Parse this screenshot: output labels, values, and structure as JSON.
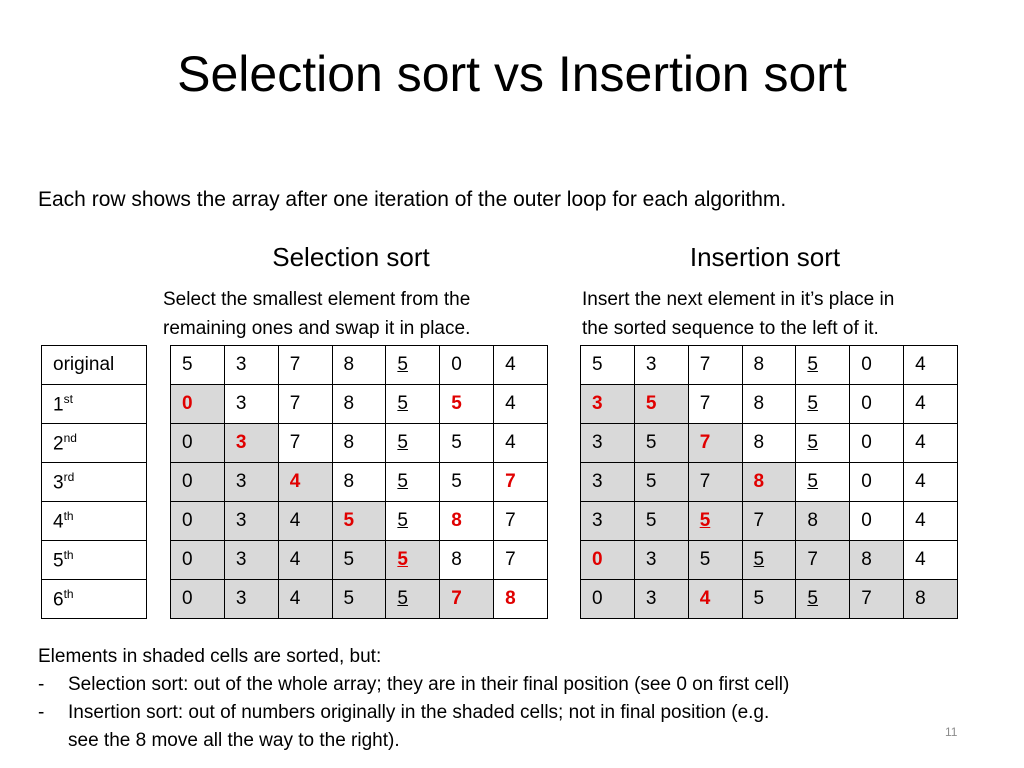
{
  "title": "Selection sort vs Insertion sort",
  "subtitle": "Each row shows the array after one iteration of the outer loop for each algorithm.",
  "selection": {
    "heading": "Selection sort",
    "desc_line1": "Select the smallest element from the",
    "desc_line2": "remaining ones and swap it in place."
  },
  "insertion": {
    "heading": "Insertion sort",
    "desc_line1": "Insert the next element in it’s place in",
    "desc_line2": "the sorted sequence to the left of it."
  },
  "row_labels": [
    {
      "base": "original",
      "sup": ""
    },
    {
      "base": "1",
      "sup": "st"
    },
    {
      "base": "2",
      "sup": "nd"
    },
    {
      "base": "3",
      "sup": "rd"
    },
    {
      "base": "4",
      "sup": "th"
    },
    {
      "base": "5",
      "sup": "th"
    },
    {
      "base": "6",
      "sup": "th"
    }
  ],
  "selection_rows": [
    [
      {
        "v": "5"
      },
      {
        "v": "3"
      },
      {
        "v": "7"
      },
      {
        "v": "8"
      },
      {
        "v": "5",
        "u": true
      },
      {
        "v": "0"
      },
      {
        "v": "4"
      }
    ],
    [
      {
        "v": "0",
        "s": true,
        "r": true
      },
      {
        "v": "3"
      },
      {
        "v": "7"
      },
      {
        "v": "8"
      },
      {
        "v": "5",
        "u": true
      },
      {
        "v": "5",
        "r": true
      },
      {
        "v": "4"
      }
    ],
    [
      {
        "v": "0",
        "s": true
      },
      {
        "v": "3",
        "s": true,
        "r": true
      },
      {
        "v": "7"
      },
      {
        "v": "8"
      },
      {
        "v": "5",
        "u": true
      },
      {
        "v": "5"
      },
      {
        "v": "4"
      }
    ],
    [
      {
        "v": "0",
        "s": true
      },
      {
        "v": "3",
        "s": true
      },
      {
        "v": "4",
        "s": true,
        "r": true
      },
      {
        "v": "8"
      },
      {
        "v": "5",
        "u": true
      },
      {
        "v": "5"
      },
      {
        "v": "7",
        "r": true
      }
    ],
    [
      {
        "v": "0",
        "s": true
      },
      {
        "v": "3",
        "s": true
      },
      {
        "v": "4",
        "s": true
      },
      {
        "v": "5",
        "s": true,
        "r": true
      },
      {
        "v": "5",
        "u": true
      },
      {
        "v": "8",
        "r": true
      },
      {
        "v": "7"
      }
    ],
    [
      {
        "v": "0",
        "s": true
      },
      {
        "v": "3",
        "s": true
      },
      {
        "v": "4",
        "s": true
      },
      {
        "v": "5",
        "s": true
      },
      {
        "v": "5",
        "s": true,
        "r": true,
        "u": true
      },
      {
        "v": "8"
      },
      {
        "v": "7"
      }
    ],
    [
      {
        "v": "0",
        "s": true
      },
      {
        "v": "3",
        "s": true
      },
      {
        "v": "4",
        "s": true
      },
      {
        "v": "5",
        "s": true
      },
      {
        "v": "5",
        "s": true,
        "u": true
      },
      {
        "v": "7",
        "s": true,
        "r": true
      },
      {
        "v": "8",
        "r": true
      }
    ]
  ],
  "insertion_rows": [
    [
      {
        "v": "5"
      },
      {
        "v": "3"
      },
      {
        "v": "7"
      },
      {
        "v": "8"
      },
      {
        "v": "5",
        "u": true
      },
      {
        "v": "0"
      },
      {
        "v": "4"
      }
    ],
    [
      {
        "v": "3",
        "s": true,
        "r": true
      },
      {
        "v": "5",
        "s": true,
        "r": true
      },
      {
        "v": "7"
      },
      {
        "v": "8"
      },
      {
        "v": "5",
        "u": true
      },
      {
        "v": "0"
      },
      {
        "v": "4"
      }
    ],
    [
      {
        "v": "3",
        "s": true
      },
      {
        "v": "5",
        "s": true
      },
      {
        "v": "7",
        "s": true,
        "r": true
      },
      {
        "v": "8"
      },
      {
        "v": "5",
        "u": true
      },
      {
        "v": "0"
      },
      {
        "v": "4"
      }
    ],
    [
      {
        "v": "3",
        "s": true
      },
      {
        "v": "5",
        "s": true
      },
      {
        "v": "7",
        "s": true
      },
      {
        "v": "8",
        "s": true,
        "r": true
      },
      {
        "v": "5",
        "u": true
      },
      {
        "v": "0"
      },
      {
        "v": "4"
      }
    ],
    [
      {
        "v": "3",
        "s": true
      },
      {
        "v": "5",
        "s": true
      },
      {
        "v": "5",
        "s": true,
        "r": true,
        "u": true
      },
      {
        "v": "7",
        "s": true
      },
      {
        "v": "8",
        "s": true
      },
      {
        "v": "0"
      },
      {
        "v": "4"
      }
    ],
    [
      {
        "v": "0",
        "s": true,
        "r": true
      },
      {
        "v": "3",
        "s": true
      },
      {
        "v": "5",
        "s": true
      },
      {
        "v": "5",
        "s": true,
        "u": true
      },
      {
        "v": "7",
        "s": true
      },
      {
        "v": "8",
        "s": true
      },
      {
        "v": "4"
      }
    ],
    [
      {
        "v": "0",
        "s": true
      },
      {
        "v": "3",
        "s": true
      },
      {
        "v": "4",
        "s": true,
        "r": true
      },
      {
        "v": "5",
        "s": true
      },
      {
        "v": "5",
        "s": true,
        "u": true
      },
      {
        "v": "7",
        "s": true
      },
      {
        "v": "8",
        "s": true
      }
    ]
  ],
  "footer": {
    "line1": "Elements in shaded cells are sorted, but:",
    "dash": "-",
    "bullet1": "Selection sort: out of the whole array; they are in their final position (see 0 on first cell)",
    "bullet2": "Insertion sort: out of numbers originally in the shaded cells; not in final position (e.g.",
    "bullet2_cont": "see the 8 move all the way to the right)."
  },
  "page_number": "11",
  "colors": {
    "highlight": "#e00000",
    "shade": "#d9d9d9",
    "page_number": "#8c8c8c"
  }
}
